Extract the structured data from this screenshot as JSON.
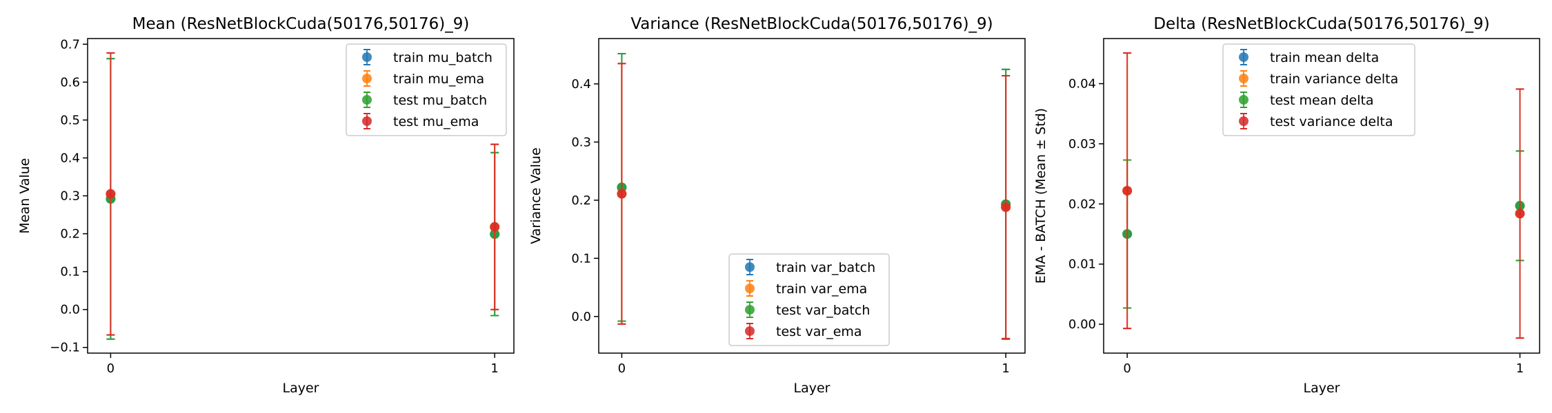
{
  "chart_data": [
    {
      "type": "scatter",
      "title": "Mean (ResNetBlockCuda(50176,50176)_9)",
      "xlabel": "Layer",
      "ylabel": "Mean Value",
      "x": [
        0,
        1
      ],
      "xticks": [
        "0",
        "1"
      ],
      "xlim": [
        -0.06,
        1.05
      ],
      "ylim": [
        -0.115,
        0.715
      ],
      "yticks": [
        -0.1,
        0.0,
        0.1,
        0.2,
        0.3,
        0.4,
        0.5,
        0.6,
        0.7
      ],
      "ytick_labels": [
        "−0.1",
        "0.0",
        "0.1",
        "0.2",
        "0.3",
        "0.4",
        "0.5",
        "0.6",
        "0.7"
      ],
      "legend_position": "upper right",
      "grid": false,
      "series": [
        {
          "name": "train mu_batch",
          "color": "#1f77b4",
          "values": [
            0.292,
            0.199
          ],
          "err": [
            0.37,
            0.215
          ]
        },
        {
          "name": "train mu_ema",
          "color": "#ff7f0e",
          "values": [
            0.305,
            0.218
          ],
          "err": [
            0.372,
            0.218
          ]
        },
        {
          "name": "test mu_batch",
          "color": "#2ca02c",
          "values": [
            0.292,
            0.199
          ],
          "err": [
            0.37,
            0.215
          ]
        },
        {
          "name": "test mu_ema",
          "color": "#d62728",
          "values": [
            0.305,
            0.218
          ],
          "err": [
            0.372,
            0.218
          ]
        }
      ]
    },
    {
      "type": "scatter",
      "title": "Variance (ResNetBlockCuda(50176,50176)_9)",
      "xlabel": "Layer",
      "ylabel": "Variance Value",
      "x": [
        0,
        1
      ],
      "xticks": [
        "0",
        "1"
      ],
      "xlim": [
        -0.06,
        1.05
      ],
      "ylim": [
        -0.063,
        0.478
      ],
      "yticks": [
        0.0,
        0.1,
        0.2,
        0.3,
        0.4
      ],
      "ytick_labels": [
        "0.0",
        "0.1",
        "0.2",
        "0.3",
        "0.4"
      ],
      "legend_position": "lower center",
      "grid": false,
      "series": [
        {
          "name": "train var_batch",
          "color": "#1f77b4",
          "values": [
            0.222,
            0.193
          ],
          "err": [
            0.23,
            0.232
          ]
        },
        {
          "name": "train var_ema",
          "color": "#ff7f0e",
          "values": [
            0.211,
            0.188
          ],
          "err": [
            0.224,
            0.226
          ]
        },
        {
          "name": "test var_batch",
          "color": "#2ca02c",
          "values": [
            0.222,
            0.193
          ],
          "err": [
            0.23,
            0.232
          ]
        },
        {
          "name": "test var_ema",
          "color": "#d62728",
          "values": [
            0.211,
            0.188
          ],
          "err": [
            0.224,
            0.226
          ]
        }
      ]
    },
    {
      "type": "scatter",
      "title": "Delta (ResNetBlockCuda(50176,50176)_9)",
      "xlabel": "Layer",
      "ylabel": "EMA - BATCH (Mean ± Std)",
      "x": [
        0,
        1
      ],
      "xticks": [
        "0",
        "1"
      ],
      "xlim": [
        -0.06,
        1.05
      ],
      "ylim": [
        -0.0048,
        0.0475
      ],
      "yticks": [
        0.0,
        0.01,
        0.02,
        0.03,
        0.04
      ],
      "ytick_labels": [
        "0.00",
        "0.01",
        "0.02",
        "0.03",
        "0.04"
      ],
      "legend_position": "upper center",
      "grid": false,
      "series": [
        {
          "name": "train mean delta",
          "color": "#1f77b4",
          "values": [
            0.015,
            0.0197
          ],
          "err": [
            0.0123,
            0.0091
          ]
        },
        {
          "name": "train variance delta",
          "color": "#ff7f0e",
          "values": [
            0.0222,
            0.0184
          ],
          "err": [
            0.0229,
            0.0207
          ]
        },
        {
          "name": "test mean delta",
          "color": "#2ca02c",
          "values": [
            0.015,
            0.0197
          ],
          "err": [
            0.0123,
            0.0091
          ]
        },
        {
          "name": "test variance delta",
          "color": "#d62728",
          "values": [
            0.0222,
            0.0184
          ],
          "err": [
            0.0229,
            0.0207
          ]
        }
      ]
    }
  ]
}
